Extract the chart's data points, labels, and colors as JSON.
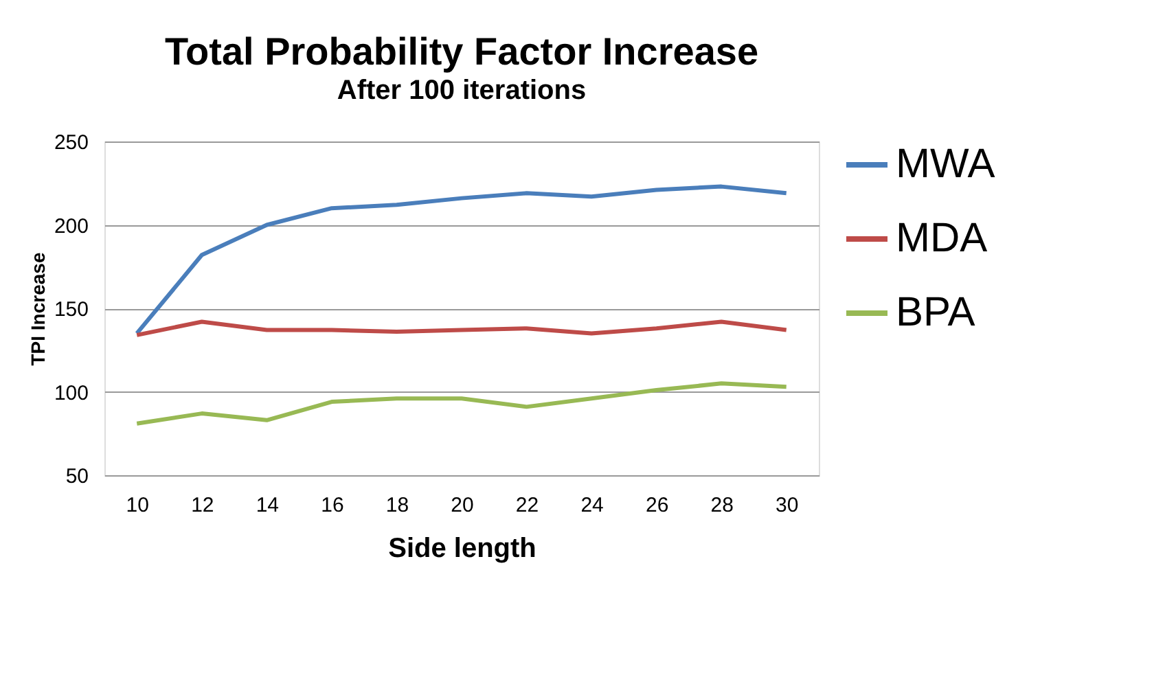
{
  "chart_data": {
    "type": "line",
    "title": "Total Probability Factor Increase",
    "subtitle": "After 100 iterations",
    "xlabel": "Side length",
    "ylabel": "TPI Increase",
    "categories": [
      "10",
      "12",
      "14",
      "16",
      "18",
      "20",
      "22",
      "24",
      "26",
      "28",
      "30"
    ],
    "series": [
      {
        "name": "MWA",
        "color": "#4a7ebb",
        "values": [
          135,
          182,
          200,
          210,
          212,
          216,
          219,
          217,
          221,
          223,
          219
        ]
      },
      {
        "name": "MDA",
        "color": "#be4b48",
        "values": [
          134,
          142,
          137,
          137,
          136,
          137,
          138,
          135,
          138,
          142,
          137
        ]
      },
      {
        "name": "BPA",
        "color": "#98b954",
        "values": [
          81,
          87,
          83,
          94,
          96,
          96,
          91,
          96,
          101,
          105,
          103
        ]
      }
    ],
    "ylim": [
      50,
      250
    ],
    "yticks": [
      50,
      100,
      150,
      200,
      250
    ],
    "grid": "y",
    "legend": "right",
    "marker": "none",
    "line_style": "solid"
  }
}
